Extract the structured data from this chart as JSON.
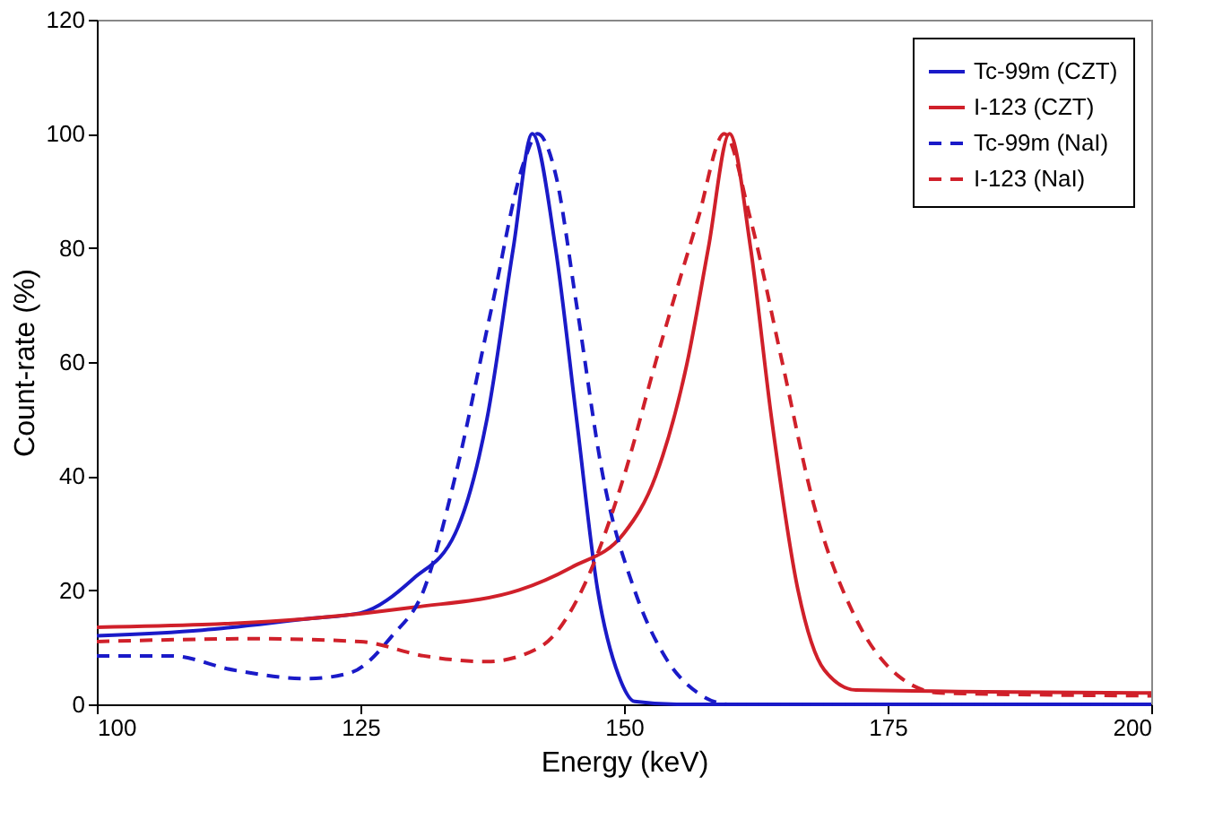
{
  "chart_data": {
    "type": "line",
    "xlabel": "Energy (keV)",
    "ylabel": "Count-rate (%)",
    "xlim": [
      100,
      200
    ],
    "xticks": [
      100,
      125,
      150,
      175,
      200
    ],
    "ylim": [
      0,
      120
    ],
    "yticks": [
      0,
      20,
      40,
      60,
      80,
      100,
      120
    ],
    "grid": false,
    "legend": "top right",
    "marker": "none",
    "series": [
      {
        "name": "Tc-99m (CZT)",
        "color": "#1a1ac8",
        "line_style": "solid",
        "x": [
          100,
          110,
          120,
          125,
          130,
          134,
          137,
          139.5,
          141.3,
          143.5,
          145.5,
          147.5,
          149.5,
          151,
          155,
          200
        ],
        "values": [
          12,
          13,
          15,
          16,
          22,
          30,
          50,
          80,
          100,
          80,
          50,
          20,
          5,
          0.5,
          0,
          0
        ]
      },
      {
        "name": "I-123 (CZT)",
        "color": "#d0202a",
        "line_style": "solid",
        "x": [
          100,
          120,
          130,
          140,
          145,
          150,
          153,
          156,
          158,
          160,
          162,
          164,
          166.5,
          169,
          172,
          200
        ],
        "values": [
          13.5,
          15,
          17,
          20,
          24,
          30,
          40,
          60,
          80,
          100,
          80,
          50,
          20,
          6,
          2.5,
          2
        ]
      },
      {
        "name": "Tc-99m (NaI)",
        "color": "#1a1ac8",
        "line_style": "dashed",
        "x": [
          100,
          107,
          113,
          120,
          124,
          128,
          131,
          134,
          137.5,
          140.5,
          141.8,
          143.5,
          145.5,
          148,
          151,
          154,
          157,
          160,
          200
        ],
        "values": [
          8.5,
          8.5,
          6,
          4.5,
          5.5,
          12,
          20,
          40,
          70,
          95,
          100,
          93,
          70,
          40,
          20,
          8,
          2,
          0,
          0
        ]
      },
      {
        "name": "I-123 (NaI)",
        "color": "#d0202a",
        "line_style": "dashed",
        "x": [
          100,
          115,
          125,
          131,
          137,
          142,
          146,
          150,
          153,
          157,
          159.5,
          162,
          165,
          168,
          172,
          176,
          180,
          200
        ],
        "values": [
          11,
          11.5,
          11,
          8.5,
          7.5,
          10,
          20,
          40,
          60,
          85,
          100,
          85,
          60,
          35,
          15,
          5,
          2,
          1.5
        ]
      }
    ]
  }
}
